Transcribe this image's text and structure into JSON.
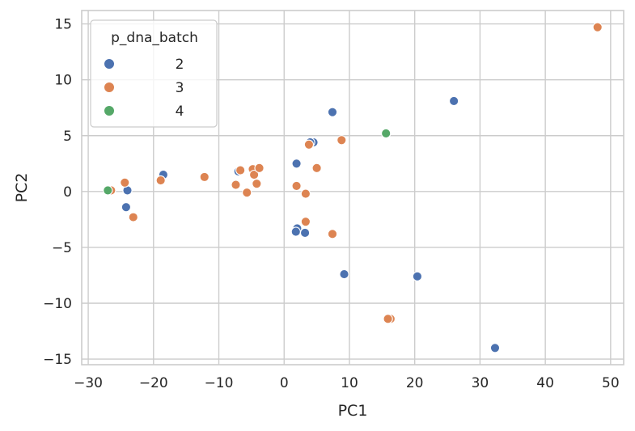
{
  "chart_data": {
    "type": "scatter",
    "title": "",
    "xlabel": "PC1",
    "ylabel": "PC2",
    "xlim": [
      -31,
      52
    ],
    "ylim": [
      -15.5,
      16.2
    ],
    "xticks": [
      -30,
      -20,
      -10,
      0,
      10,
      20,
      30,
      40,
      50
    ],
    "yticks": [
      -15,
      -10,
      -5,
      0,
      5,
      10,
      15
    ],
    "grid": true,
    "legend": {
      "title": "p_dna_batch",
      "placement": "top-left"
    },
    "series": [
      {
        "name": "2",
        "color": "#4c72b0",
        "points": [
          [
            -24,
            0.1
          ],
          [
            -24.2,
            -1.4
          ],
          [
            -18.5,
            1.5
          ],
          [
            -7,
            1.8
          ],
          [
            1.9,
            2.5
          ],
          [
            4.5,
            4.4
          ],
          [
            4,
            4.4
          ],
          [
            7.4,
            7.1
          ],
          [
            2,
            -3.3
          ],
          [
            1.8,
            -3.6
          ],
          [
            3.2,
            -3.7
          ],
          [
            9.2,
            -7.4
          ],
          [
            20.4,
            -7.6
          ],
          [
            26,
            8.1
          ],
          [
            32.3,
            -14
          ]
        ]
      },
      {
        "name": "3",
        "color": "#dd8452",
        "points": [
          [
            -26.5,
            0.1
          ],
          [
            -24.4,
            0.8
          ],
          [
            -23.1,
            -2.3
          ],
          [
            -18.9,
            1.0
          ],
          [
            -12.2,
            1.3
          ],
          [
            -7.4,
            0.6
          ],
          [
            -6.7,
            1.9
          ],
          [
            -5.7,
            -0.1
          ],
          [
            -4.8,
            2.0
          ],
          [
            -4.6,
            1.5
          ],
          [
            -4.2,
            0.7
          ],
          [
            -3.8,
            2.1
          ],
          [
            1.9,
            0.5
          ],
          [
            3.3,
            -0.2
          ],
          [
            3.3,
            -2.7
          ],
          [
            3.8,
            4.2
          ],
          [
            5.0,
            2.1
          ],
          [
            8.8,
            4.6
          ],
          [
            7.4,
            -3.8
          ],
          [
            16.3,
            -11.4
          ],
          [
            15.9,
            -11.4
          ],
          [
            48,
            14.7
          ]
        ]
      },
      {
        "name": "4",
        "color": "#55a868",
        "points": [
          [
            -27,
            0.1
          ],
          [
            15.6,
            5.2
          ]
        ]
      }
    ]
  }
}
